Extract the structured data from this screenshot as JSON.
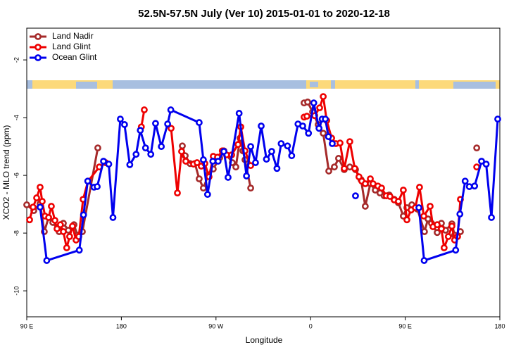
{
  "chart_data": {
    "type": "line",
    "title": "52.5N-57.5N July (Ver 10)   2015-01-01 to 2020-12-18",
    "x_label": "Longitude",
    "y_label": "XCO2 - MLO trend (ppm)",
    "xlim": [
      90,
      540
    ],
    "ylim": [
      -10.9,
      -0.9
    ],
    "xticks": [
      {
        "value": 90,
        "label": "90 E"
      },
      180,
      {
        "value": 270,
        "label": "90 W"
      },
      {
        "value": 360,
        "label": "0"
      },
      {
        "value": 450,
        "label": "90 E"
      },
      {
        "value": 540,
        "label": "180"
      }
    ],
    "yticks": [
      -2,
      -4,
      -6,
      -8,
      -10
    ],
    "legend": "top-left",
    "series": [
      {
        "name": "Land Nadir",
        "color": "#a52a2a",
        "x": [
          90,
          96.7,
          102.7,
          106.7,
          110.8,
          114.8,
          120.8,
          124.8,
          129.5,
          134.9,
          138.2,
          142.9,
          157.6,
          null,
          238,
          240.7,
          245.3,
          250,
          254,
          258,
          262.8,
          267.4,
          273.5,
          277.5,
          285.5,
          288.9,
          292.9,
          295.6,
          297.6,
          303,
          null,
          353.8,
          357.2,
          361.9,
          367.2,
          372,
          377.3,
          382.6,
          386.6,
          392,
          397.3,
          402.7,
          408,
          412,
          416.8,
          421.5,
          426,
          430,
          434.8,
          439.5,
          443.5,
          448.2,
          451.6,
          456.3,
          461.6,
          468.3,
          471.7,
          475,
          480.4,
          484.4,
          488.4,
          494.4,
          497,
          502.5,
          null,
          518
        ],
        "values": [
          -7.02,
          -7.22,
          -6.98,
          -7.95,
          -7.46,
          -7.63,
          -7.95,
          -7.66,
          -7.9,
          -7.71,
          -8.07,
          -7.95,
          -5.05,
          null,
          -4.98,
          -5.32,
          -5.59,
          -5.59,
          -6.12,
          -6.44,
          -5.98,
          -5.78,
          -5.39,
          -5.15,
          -5.56,
          -5.71,
          -4.71,
          -5.15,
          -5.46,
          -6.44,
          null,
          -3.49,
          -3.46,
          -3.8,
          -4.24,
          -4.54,
          -5.85,
          -5.71,
          -5.41,
          -5.8,
          -5.71,
          -5.8,
          -6.15,
          -7.07,
          -6.29,
          -6.51,
          -6.61,
          -6.71,
          -6.68,
          -6.83,
          -6.95,
          -7.41,
          -7.12,
          -7.02,
          -7.17,
          -7.95,
          -7.51,
          -7.66,
          -7.98,
          -7.66,
          -7.9,
          -7.68,
          -8.07,
          -7.95,
          null,
          -5.05
        ]
      },
      {
        "name": "Land Glint",
        "color": "#ee0000",
        "x": [
          92.7,
          96,
          99.4,
          102.7,
          104.7,
          107.4,
          110.8,
          113.4,
          116.8,
          118.8,
          122,
          124.8,
          128,
          130.8,
          133.5,
          136.9,
          139.5,
          143.6,
          148.3,
          159,
          165,
          null,
          199,
          201.8,
          null,
          227.3,
          233.3,
          237.3,
          241.3,
          248.7,
          252,
          256,
          259.4,
          263.4,
          267.4,
          271.5,
          276,
          280,
          284.9,
          291,
          293.6,
          297.6,
          303,
          null,
          353.8,
          356.5,
          363.9,
          368.6,
          372,
          375.3,
          380,
          384,
          388,
          392,
          397.3,
          402,
          406,
          408.7,
          412,
          416.8,
          419.4,
          424,
          427.5,
          432,
          435.5,
          439.5,
          443.5,
          448.2,
          451.6,
          455.6,
          459.6,
          463.6,
          467.7,
          473.7,
          476.4,
          480.4,
          484.4,
          487,
          491,
          494.4,
          497,
          499.8,
          502.5,
          null,
          518
        ],
        "values": [
          -7.54,
          -7.1,
          -6.78,
          -6.41,
          -6.9,
          -7.41,
          -7.46,
          -7.07,
          -7.56,
          -7.85,
          -7.71,
          -7.95,
          -8.51,
          -8.12,
          -7.76,
          -8.24,
          -8.12,
          -6.83,
          -6.2,
          -5.71,
          -5.56,
          null,
          -4.32,
          -3.73,
          null,
          -4.37,
          -6.61,
          -5.17,
          -5.51,
          -5.61,
          -5.56,
          -5.68,
          -5.59,
          -6.05,
          -5.34,
          -5.37,
          -5.15,
          -5.29,
          -5.29,
          -4.93,
          -4.32,
          -5.15,
          -5.66,
          null,
          -3.98,
          -3.95,
          -3.93,
          -3.66,
          -3.27,
          -4.1,
          -4.71,
          -4.9,
          -4.88,
          -5.76,
          -4.83,
          -5.76,
          -6.05,
          -6.2,
          -6.29,
          -6.12,
          -6.29,
          -6.37,
          -6.44,
          -6.71,
          -6.73,
          -6.85,
          -6.9,
          -6.51,
          -7.54,
          -7.2,
          -7.12,
          -6.41,
          -7.41,
          -7.07,
          -7.78,
          -7.71,
          -7.85,
          -8.51,
          -8.12,
          -7.76,
          -8.24,
          -8.12,
          -6.83,
          null,
          -5.71
        ]
      },
      {
        "name": "Ocean Glint",
        "color": "#0000ee",
        "x": [
          102.7,
          109,
          140,
          144,
          148,
          154,
          157,
          163,
          168,
          172,
          179,
          183,
          188,
          194,
          198,
          203,
          208,
          212.5,
          218,
          224,
          227,
          254,
          258,
          262,
          267,
          272,
          277.5,
          281.5,
          292,
          299,
          303,
          307.6,
          313,
          318,
          323,
          328,
          332,
          338,
          342,
          348,
          352.5,
          358,
          363,
          368,
          371,
          374,
          377,
          380.6,
          null,
          402.7,
          null,
          463,
          468,
          498,
          502,
          507,
          511,
          516,
          522.6,
          527,
          532,
          538
        ],
        "values": [
          -7.1,
          -8.95,
          -8.59,
          -7.37,
          -6.2,
          -6.41,
          -6.39,
          -5.51,
          -5.61,
          -7.46,
          -4.05,
          -4.24,
          -5.63,
          -5.27,
          -4.44,
          -5.05,
          -5.27,
          -4.2,
          -5.0,
          -4.22,
          -3.73,
          -4.17,
          -5.46,
          -6.66,
          -5.51,
          -5.51,
          -5.17,
          -6.07,
          -3.85,
          -6.02,
          -5.0,
          -5.56,
          -4.29,
          -5.44,
          -5.17,
          -5.76,
          -4.9,
          -4.98,
          -5.32,
          -4.22,
          -4.29,
          -4.54,
          -3.49,
          -4.37,
          -4.05,
          -4.05,
          -4.66,
          -4.9,
          null,
          -6.71,
          null,
          -7.12,
          -8.95,
          -8.59,
          -7.34,
          -6.2,
          -6.39,
          -6.37,
          -5.51,
          -5.61,
          -7.46,
          -4.05
        ]
      }
    ]
  }
}
